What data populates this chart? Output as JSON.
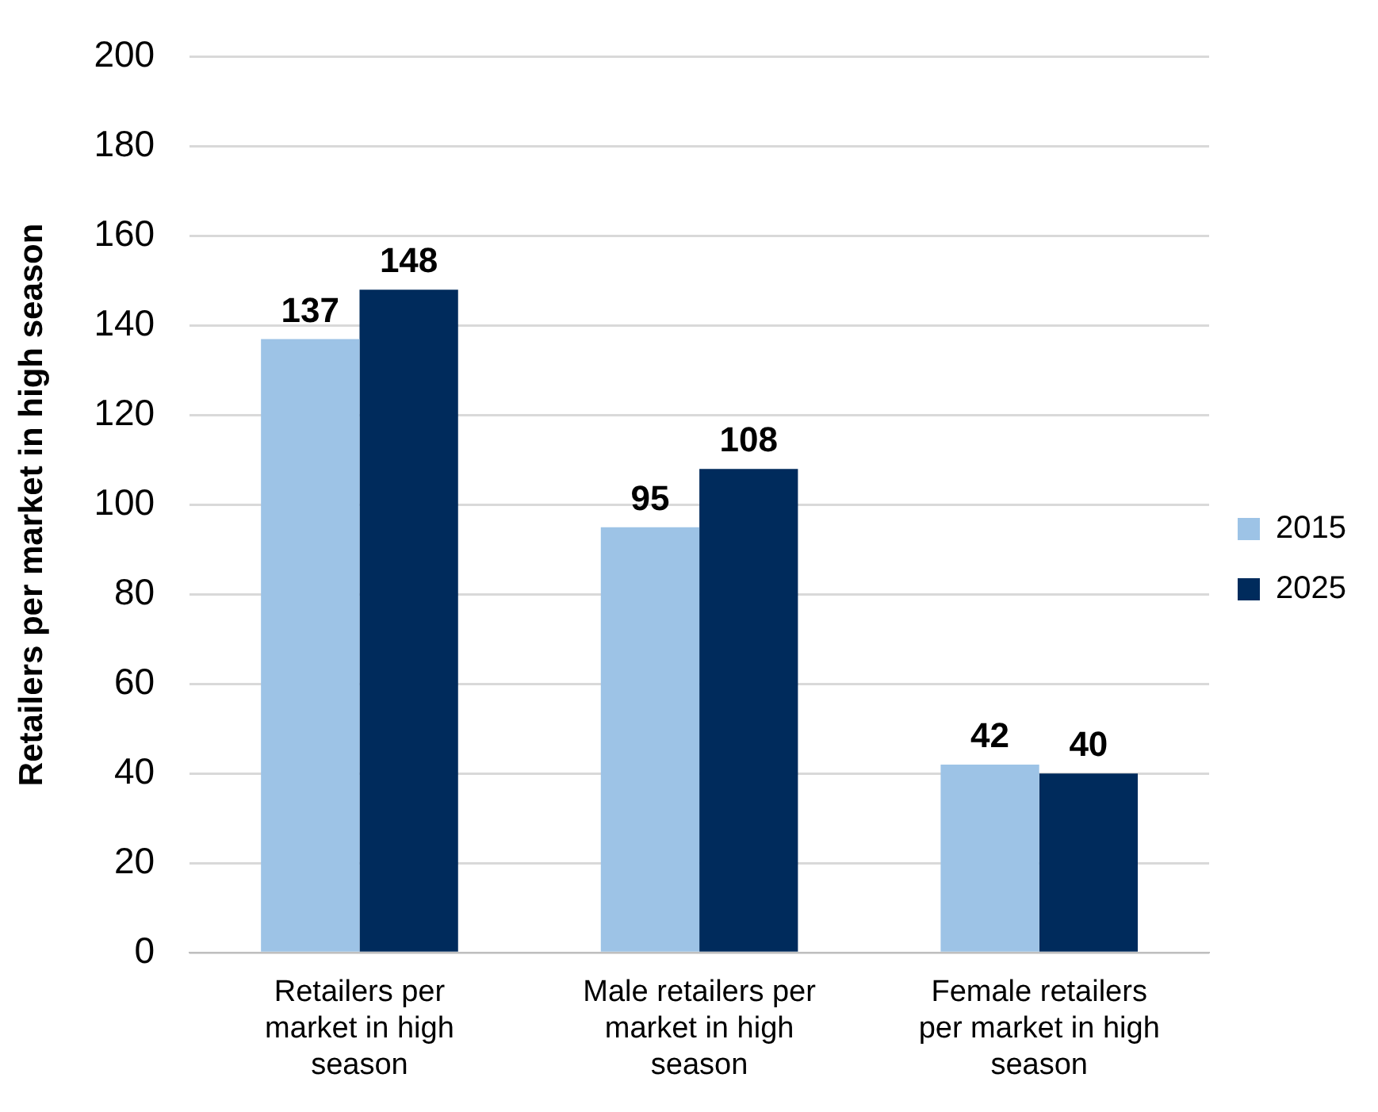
{
  "chart_data": {
    "type": "bar",
    "ylabel": "Retailers per market in high season",
    "categories": [
      "Retailers per market in high season",
      "Male retailers per market in high season",
      "Female retailers per market in high season"
    ],
    "series": [
      {
        "name": "2015",
        "color": "#9dc3e6",
        "values": [
          137,
          95,
          42
        ]
      },
      {
        "name": "2025",
        "color": "#002b5c",
        "values": [
          148,
          108,
          40
        ]
      }
    ],
    "ylim": [
      0,
      200
    ],
    "yticks": [
      0,
      20,
      40,
      60,
      80,
      100,
      120,
      140,
      160,
      180,
      200
    ],
    "grid": "y",
    "legend": "right",
    "data_labels": true
  }
}
